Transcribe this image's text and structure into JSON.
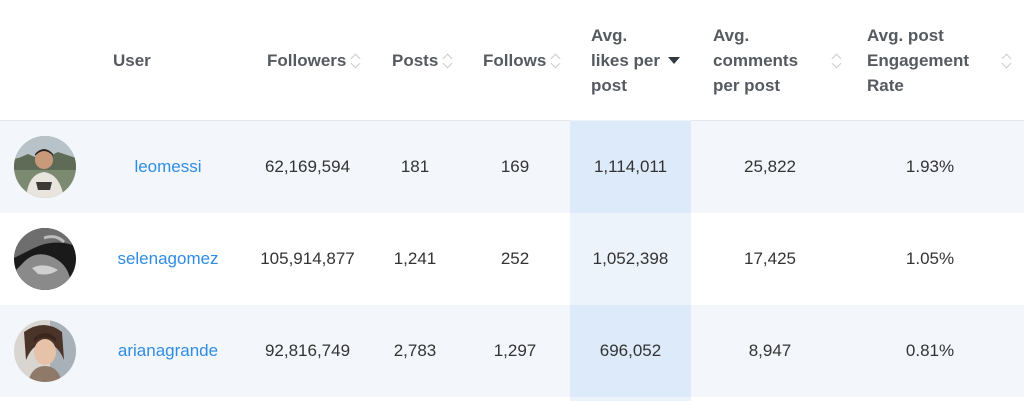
{
  "table": {
    "columns": [
      {
        "key": "user",
        "label": "User",
        "sort": "none"
      },
      {
        "key": "followers",
        "label": "Followers",
        "sort": "both"
      },
      {
        "key": "posts",
        "label": "Posts",
        "sort": "both"
      },
      {
        "key": "follows",
        "label": "Follows",
        "sort": "both"
      },
      {
        "key": "avg_likes",
        "label": "Avg.\nlikes per\npost",
        "sort": "desc"
      },
      {
        "key": "avg_comments",
        "label": "Avg.\ncomments\nper post",
        "sort": "both"
      },
      {
        "key": "engagement",
        "label": "Avg. post\nEngagement\nRate",
        "sort": "both"
      }
    ],
    "rows": [
      {
        "username": "leomessi",
        "followers": "62,169,594",
        "posts": "181",
        "follows": "169",
        "avg_likes": "1,114,011",
        "avg_comments": "25,822",
        "engagement": "1.93%"
      },
      {
        "username": "selenagomez",
        "followers": "105,914,877",
        "posts": "1,241",
        "follows": "252",
        "avg_likes": "1,052,398",
        "avg_comments": "17,425",
        "engagement": "1.05%"
      },
      {
        "username": "arianagrande",
        "followers": "92,816,749",
        "posts": "2,783",
        "follows": "1,297",
        "avg_likes": "696,052",
        "avg_comments": "8,947",
        "engagement": "0.81%"
      }
    ]
  },
  "colors": {
    "link": "#2f8de4",
    "header_text": "#555a60",
    "row_alt_bg": "#f3f6fa",
    "sorted_column_bg": "#dceafa"
  }
}
